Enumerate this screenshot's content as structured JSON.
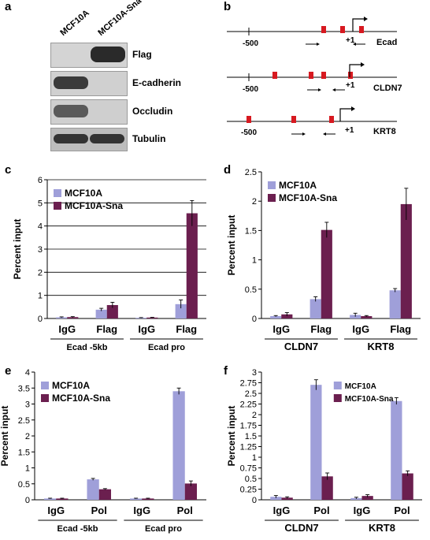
{
  "panel_labels": {
    "a": "a",
    "b": "b",
    "c": "c",
    "d": "d",
    "e": "e",
    "f": "f"
  },
  "blot": {
    "columns": [
      "MCF10A",
      "MCF10A-Sna"
    ],
    "rows": [
      "Flag",
      "E-cadherin",
      "Occludin",
      "Tubulin"
    ]
  },
  "promoters": [
    {
      "name": "Ecad",
      "left_label": "-500",
      "tss_label": "+1"
    },
    {
      "name": "CLDN7",
      "left_label": "-500",
      "tss_label": "+1"
    },
    {
      "name": "KRT8",
      "left_label": "-500",
      "tss_label": "+1"
    }
  ],
  "colors": {
    "mcf10a": "#9f9fd9",
    "sna": "#6b1f4f",
    "box": "#d71920"
  },
  "chart_data": [
    {
      "id": "c",
      "type": "bar",
      "ylabel": "Percent input",
      "ylim": [
        0,
        6
      ],
      "yticks": [
        0,
        1,
        2,
        3,
        4,
        5,
        6
      ],
      "grid": true,
      "legend": "top-left",
      "categories": [
        "IgG",
        "Flag",
        "IgG",
        "Flag"
      ],
      "groups": [
        {
          "label": "Ecad -5kb",
          "span": [
            0,
            1
          ]
        },
        {
          "label": "Ecad  pro",
          "span": [
            2,
            3
          ]
        }
      ],
      "series": [
        {
          "name": "MCF10A",
          "color": "#9f9fd9",
          "values": [
            0.05,
            0.38,
            0.03,
            0.62
          ],
          "errors": [
            0.02,
            0.06,
            0.01,
            0.18
          ]
        },
        {
          "name": "MCF10A-Sna",
          "color": "#6b1f4f",
          "values": [
            0.06,
            0.58,
            0.04,
            4.55
          ],
          "errors": [
            0.02,
            0.12,
            0.01,
            0.55
          ]
        }
      ]
    },
    {
      "id": "d",
      "type": "bar",
      "ylabel": "Percent input",
      "ylim": [
        0,
        2.5
      ],
      "yticks": [
        0,
        0.5,
        1,
        1.5,
        2,
        2.5
      ],
      "grid": false,
      "legend": "top-left",
      "categories": [
        "IgG",
        "Flag",
        "IgG",
        "Flag"
      ],
      "groups": [
        {
          "label": "CLDN7",
          "span": [
            0,
            1
          ]
        },
        {
          "label": "KRT8",
          "span": [
            2,
            3
          ]
        }
      ],
      "series": [
        {
          "name": "MCF10A",
          "color": "#9f9fd9",
          "values": [
            0.04,
            0.33,
            0.06,
            0.48
          ],
          "errors": [
            0.01,
            0.04,
            0.03,
            0.03
          ]
        },
        {
          "name": "MCF10A-Sna",
          "color": "#6b1f4f",
          "values": [
            0.07,
            1.51,
            0.04,
            1.95
          ],
          "errors": [
            0.03,
            0.13,
            0.01,
            0.27
          ]
        }
      ]
    },
    {
      "id": "e",
      "type": "bar",
      "ylabel": "Percent input",
      "ylim": [
        0,
        4
      ],
      "yticks": [
        0,
        0.5,
        1,
        1.5,
        2,
        2.5,
        3,
        3.5,
        4
      ],
      "grid": false,
      "legend": "top-left",
      "categories": [
        "IgG",
        "Pol",
        "IgG",
        "Pol"
      ],
      "groups": [
        {
          "label": "Ecad -5kb",
          "span": [
            0,
            1
          ]
        },
        {
          "label": "Ecad pro",
          "span": [
            2,
            3
          ]
        }
      ],
      "series": [
        {
          "name": "MCF10A",
          "color": "#9f9fd9",
          "values": [
            0.04,
            0.64,
            0.04,
            3.4
          ],
          "errors": [
            0.01,
            0.03,
            0.01,
            0.1
          ]
        },
        {
          "name": "MCF10A-Sna",
          "color": "#6b1f4f",
          "values": [
            0.04,
            0.33,
            0.04,
            0.51
          ],
          "errors": [
            0.01,
            0.02,
            0.01,
            0.08
          ]
        }
      ]
    },
    {
      "id": "f",
      "type": "bar",
      "ylabel": "Percent input",
      "ylim": [
        0,
        3
      ],
      "yticks": [
        0,
        0.25,
        0.5,
        0.75,
        1,
        1.25,
        1.5,
        1.75,
        2,
        2.25,
        2.5,
        2.75,
        3
      ],
      "grid": false,
      "legend": "top-right",
      "categories": [
        "IgG",
        "Pol",
        "IgG",
        "Pol"
      ],
      "groups": [
        {
          "label": "CLDN7",
          "span": [
            0,
            1
          ]
        },
        {
          "label": "KRT8",
          "span": [
            2,
            3
          ]
        }
      ],
      "series": [
        {
          "name": "MCF10A",
          "color": "#9f9fd9",
          "values": [
            0.07,
            2.7,
            0.04,
            2.32
          ],
          "errors": [
            0.03,
            0.12,
            0.02,
            0.08
          ]
        },
        {
          "name": "MCF10A-Sna",
          "color": "#6b1f4f",
          "values": [
            0.05,
            0.55,
            0.09,
            0.62
          ],
          "errors": [
            0.02,
            0.08,
            0.03,
            0.06
          ]
        }
      ]
    }
  ]
}
